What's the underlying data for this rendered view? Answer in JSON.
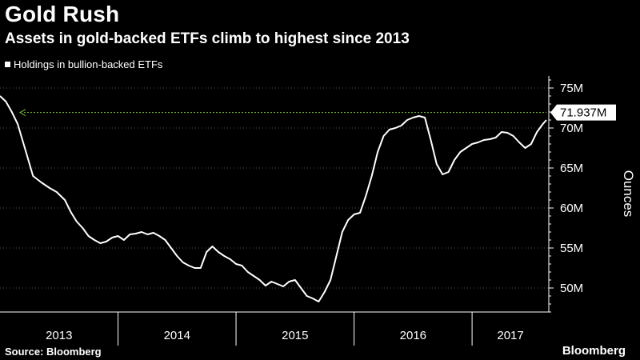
{
  "header": {
    "title": "Gold Rush",
    "subtitle": "Assets in gold-backed ETFs climb to highest since 2013"
  },
  "footer": {
    "source": "Source: Bloomberg",
    "brand": "Bloomberg"
  },
  "colors": {
    "background": "#000000",
    "line": "#ffffff",
    "reference_line": "#7fbf3f",
    "grid": "#555555"
  },
  "chart_data": {
    "type": "line",
    "title": "Gold Rush",
    "subtitle": "Assets in gold-backed ETFs climb to highest since 2013",
    "ylabel": "Ounces",
    "y_unit": "M",
    "ylim": [
      47,
      76
    ],
    "y_ticks": [
      50,
      55,
      60,
      65,
      70,
      75
    ],
    "y_tick_labels": [
      "50M",
      "55M",
      "60M",
      "65M",
      "70M",
      "75M"
    ],
    "x_range": [
      2013.0,
      2017.65
    ],
    "x_tick_labels": [
      "2013",
      "2014",
      "2015",
      "2016",
      "2017"
    ],
    "grid": true,
    "legend": "top-left",
    "series": [
      {
        "name": "Holdings in bullion-backed ETFs",
        "x": [
          2013.0,
          2013.05,
          2013.1,
          2013.15,
          2013.22,
          2013.28,
          2013.35,
          2013.42,
          2013.48,
          2013.55,
          2013.6,
          2013.65,
          2013.7,
          2013.75,
          2013.8,
          2013.85,
          2013.9,
          2013.95,
          2014.0,
          2014.05,
          2014.1,
          2014.15,
          2014.2,
          2014.25,
          2014.3,
          2014.35,
          2014.4,
          2014.45,
          2014.5,
          2014.55,
          2014.6,
          2014.65,
          2014.7,
          2014.75,
          2014.8,
          2014.85,
          2014.9,
          2014.95,
          2015.0,
          2015.05,
          2015.1,
          2015.15,
          2015.2,
          2015.25,
          2015.3,
          2015.35,
          2015.4,
          2015.45,
          2015.5,
          2015.55,
          2015.6,
          2015.65,
          2015.7,
          2015.75,
          2015.8,
          2015.85,
          2015.9,
          2015.95,
          2016.0,
          2016.05,
          2016.1,
          2016.15,
          2016.2,
          2016.25,
          2016.3,
          2016.35,
          2016.4,
          2016.45,
          2016.5,
          2016.55,
          2016.6,
          2016.65,
          2016.7,
          2016.75,
          2016.8,
          2016.85,
          2016.9,
          2016.95,
          2017.0,
          2017.05,
          2017.1,
          2017.15,
          2017.2,
          2017.25,
          2017.3,
          2017.35,
          2017.4,
          2017.45,
          2017.5,
          2017.55,
          2017.6,
          2017.63
        ],
        "values": [
          74.0,
          73.3,
          72.0,
          70.5,
          67.0,
          64.0,
          63.2,
          62.5,
          62.0,
          61.0,
          59.5,
          58.3,
          57.5,
          56.5,
          56.0,
          55.6,
          55.8,
          56.3,
          56.5,
          56.0,
          56.7,
          56.8,
          57.0,
          56.7,
          56.9,
          56.5,
          56.0,
          55.0,
          54.0,
          53.2,
          52.8,
          52.5,
          52.5,
          54.5,
          55.2,
          54.5,
          54.0,
          53.6,
          53.0,
          52.8,
          52.0,
          51.5,
          51.0,
          50.3,
          50.8,
          50.5,
          50.2,
          50.8,
          51.0,
          50.0,
          49.0,
          48.7,
          48.3,
          49.5,
          51.0,
          54.0,
          57.0,
          58.5,
          59.2,
          59.4,
          61.5,
          64.0,
          67.0,
          69.0,
          69.8,
          70.0,
          70.3,
          71.0,
          71.3,
          71.5,
          71.3,
          68.5,
          65.5,
          64.2,
          64.5,
          66.0,
          67.0,
          67.5,
          68.0,
          68.2,
          68.5,
          68.6,
          68.8,
          69.5,
          69.4,
          69.0,
          68.2,
          67.5,
          68.0,
          69.5,
          70.5,
          71.0
        ]
      }
    ],
    "reference_line": {
      "value": 71.937
    },
    "annotations": [
      {
        "text": "71.937M",
        "x": 2017.63,
        "y": 71.937
      }
    ]
  }
}
